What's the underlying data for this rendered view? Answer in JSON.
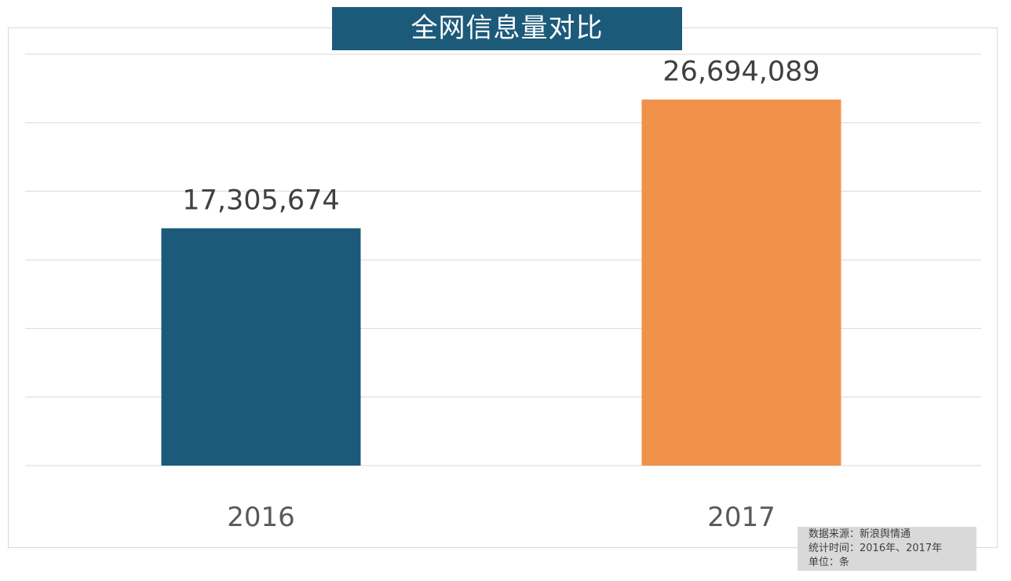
{
  "chart_data": {
    "type": "bar",
    "title": "全网信息量对比",
    "categories": [
      "2016",
      "2017"
    ],
    "values": [
      17305674,
      26694089
    ],
    "value_labels": [
      "17,305,674",
      "26,694,089"
    ],
    "colors": [
      "#1c5a7a",
      "#f0914a"
    ],
    "ylim": [
      0,
      30000000
    ],
    "ytick_step": 5000000,
    "grid": true,
    "y_axis_labels_shown": false
  },
  "source_note": {
    "line1": "数据来源：新浪舆情通",
    "line2": "统计时间：2016年、2017年",
    "line3": "单位：条"
  }
}
